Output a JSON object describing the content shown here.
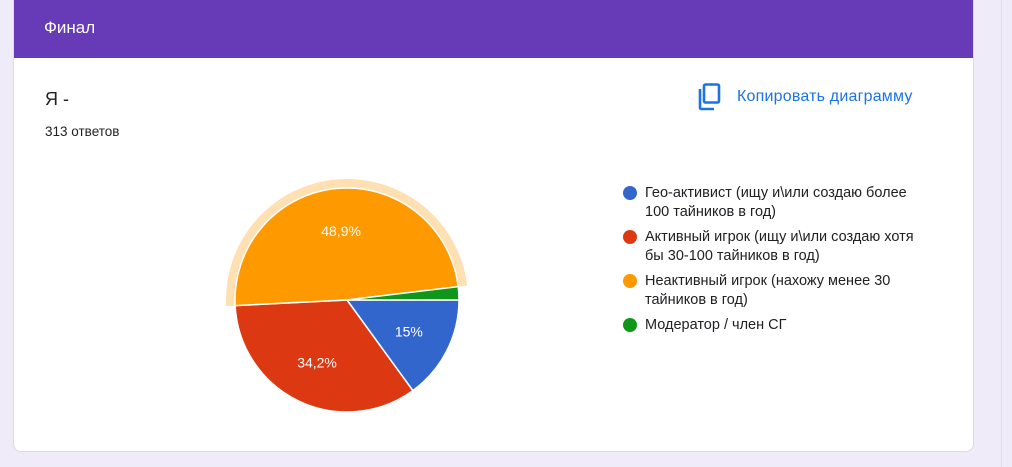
{
  "section": {
    "title": "Финал"
  },
  "question": {
    "title": "Я -",
    "responses": "313 ответов"
  },
  "copy_button": {
    "label": "Копировать диаграмму",
    "icon": "copy-icon"
  },
  "chart_data": {
    "type": "pie",
    "title": "",
    "slices": [
      {
        "label": "Гео-активист (ищу и\\или создаю более 100 тайников в год)",
        "value": 15,
        "display": "15%",
        "color": "#3366cc"
      },
      {
        "label": "Активный игрок (ищу и\\или создаю хотя бы 30-100 тайников в год)",
        "value": 34.2,
        "display": "34,2%",
        "color": "#dc3912"
      },
      {
        "label": "Неактивный игрок (нахожу менее 30 тайников в год)",
        "value": 48.9,
        "display": "48,9%",
        "color": "#ff9900"
      },
      {
        "label": "Модератор / член СГ",
        "value": 1.9,
        "display": "",
        "color": "#109618"
      }
    ],
    "highlighted_slice": 2,
    "legend_position": "right"
  }
}
